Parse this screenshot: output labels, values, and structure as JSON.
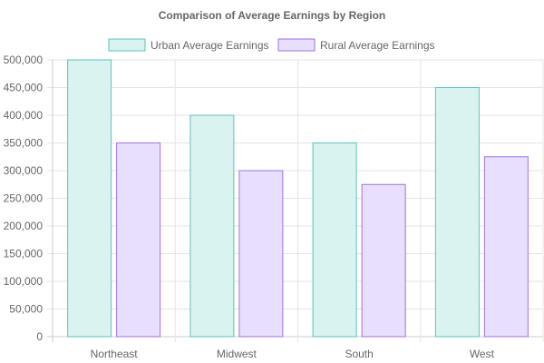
{
  "chart_data": {
    "type": "bar",
    "title": "Comparison of Average Earnings by Region",
    "categories": [
      "Northeast",
      "Midwest",
      "South",
      "West"
    ],
    "series": [
      {
        "name": "Urban Average Earnings",
        "values": [
          500000,
          400000,
          350000,
          450000
        ],
        "fill": "#d9f3f0",
        "stroke": "#5cc3bb"
      },
      {
        "name": "Rural Average Earnings",
        "values": [
          350000,
          300000,
          275000,
          325000
        ],
        "fill": "#e8defd",
        "stroke": "#a173e0"
      }
    ],
    "ylim": [
      0,
      500000
    ],
    "yticks": [
      "0",
      "50,000",
      "100,000",
      "150,000",
      "200,000",
      "250,000",
      "300,000",
      "350,000",
      "400,000",
      "450,000",
      "500,000"
    ],
    "legend_position": "top",
    "grid": true
  }
}
